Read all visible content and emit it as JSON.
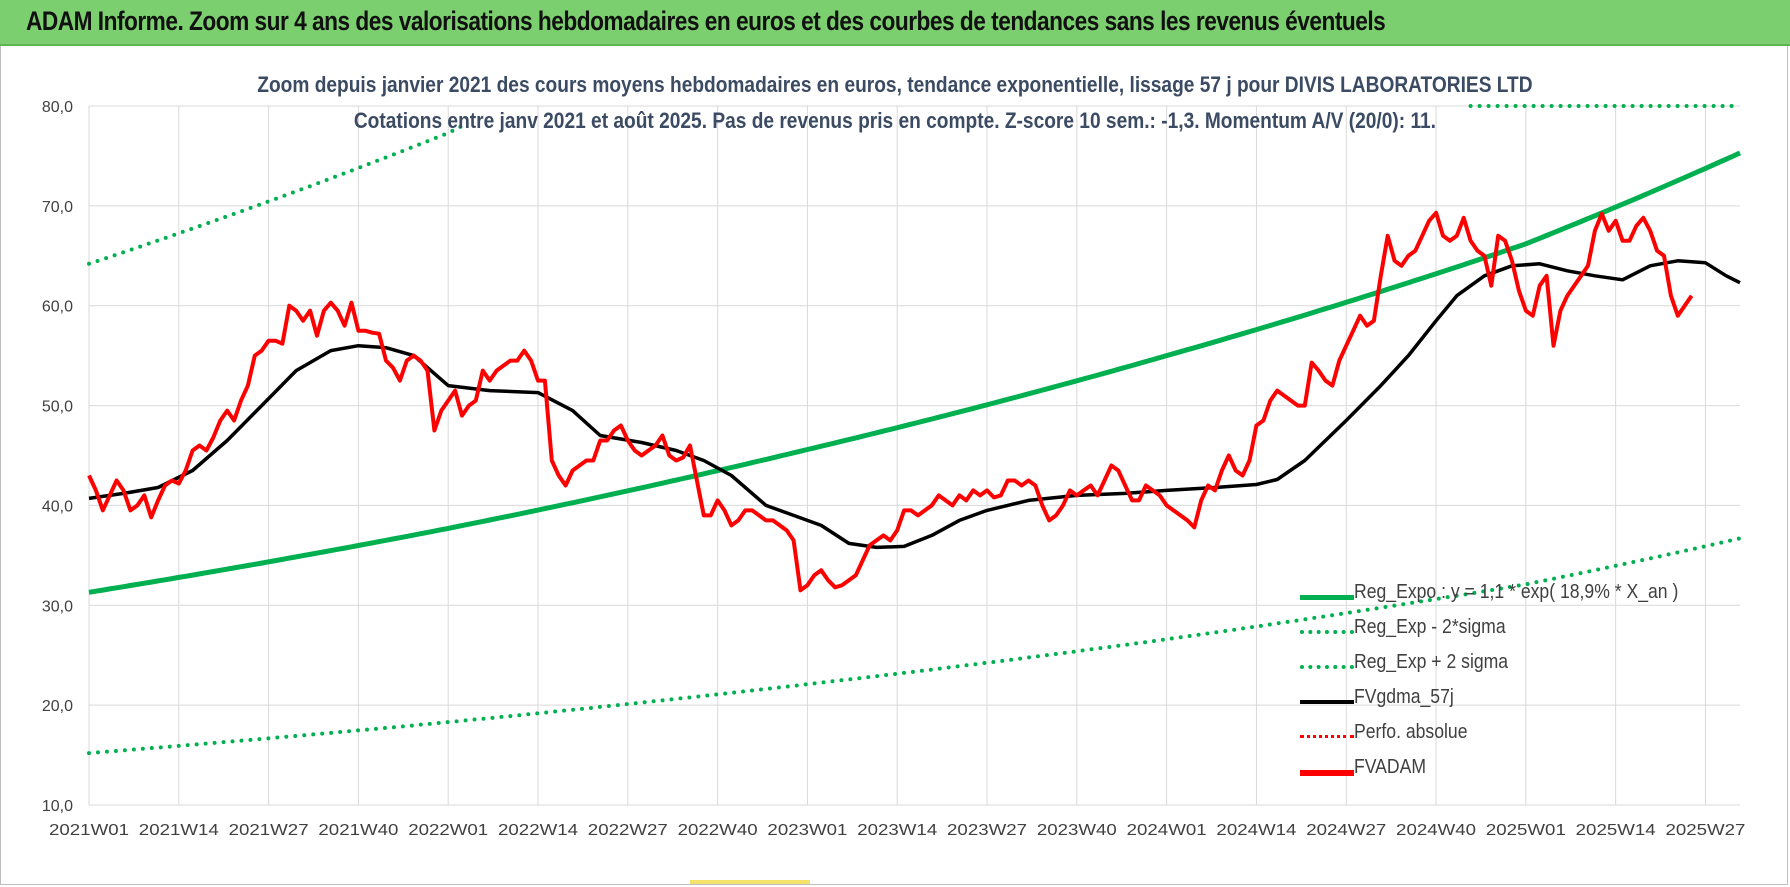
{
  "header": {
    "title": "ADAM Informe. Zoom sur 4 ans des valorisations hebdomadaires en euros et des courbes de tendances sans les revenus éventuels",
    "subtitle_line1": "Zoom depuis janvier 2021 des cours moyens hebdomadaires en euros, tendance exponentielle, lissage 57 j pour DIVIS LABORATORIES LTD",
    "subtitle_line2": "Cotations entre janv 2021 et août 2025. Pas de revenus pris en compte. Z-score 10 sem.: -1,3. Momentum A/V (20/0): 11."
  },
  "colors": {
    "banner": "#7ccf6e",
    "trend": "#00b050",
    "price": "#ff0000",
    "smooth": "#000000",
    "grid": "#d9d9d9",
    "tick_text": "#404040"
  },
  "legend": [
    {
      "label": "Reg_Expo : y = 1,1 * exp( 18,9% *  X_an )",
      "style": "solid",
      "color": "#00b050"
    },
    {
      "label": "Reg_Exp - 2*sigma",
      "style": "dotted",
      "color": "#00b050"
    },
    {
      "label": "Reg_Exp + 2 sigma",
      "style": "dotted",
      "color": "#00b050"
    },
    {
      "label": "FVgdma_57j",
      "style": "solid",
      "color": "#000000"
    },
    {
      "label": "Perfo. absolue",
      "style": "dotted",
      "color": "#ff0000"
    },
    {
      "label": "FVADAM",
      "style": "solid-thick",
      "color": "#ff0000"
    }
  ],
  "chart_data": {
    "type": "line",
    "x_type": "week_index",
    "xlim": [
      0,
      239
    ],
    "ylim": [
      10,
      80
    ],
    "yticks": [
      "10,0",
      "20,0",
      "30,0",
      "40,0",
      "50,0",
      "60,0",
      "70,0",
      "80,0"
    ],
    "xticks": [
      {
        "week": 0,
        "label": "2021W01"
      },
      {
        "week": 13,
        "label": "2021W14"
      },
      {
        "week": 26,
        "label": "2021W27"
      },
      {
        "week": 39,
        "label": "2021W40"
      },
      {
        "week": 52,
        "label": "2022W01"
      },
      {
        "week": 65,
        "label": "2022W14"
      },
      {
        "week": 78,
        "label": "2022W27"
      },
      {
        "week": 91,
        "label": "2022W40"
      },
      {
        "week": 104,
        "label": "2023W01"
      },
      {
        "week": 117,
        "label": "2023W14"
      },
      {
        "week": 130,
        "label": "2023W27"
      },
      {
        "week": 143,
        "label": "2023W40"
      },
      {
        "week": 156,
        "label": "2024W01"
      },
      {
        "week": 169,
        "label": "2024W14"
      },
      {
        "week": 182,
        "label": "2024W27"
      },
      {
        "week": 195,
        "label": "2024W40"
      },
      {
        "week": 208,
        "label": "2025W01"
      },
      {
        "week": 221,
        "label": "2025W14"
      },
      {
        "week": 234,
        "label": "2025W27"
      }
    ],
    "grid": true,
    "legend_position": "bottom-right",
    "trend": {
      "name": "Reg_Expo : y = 1,1 * exp( 18,9% *  X_an )",
      "points": [
        [
          0,
          31.3
        ],
        [
          52,
          37.7
        ],
        [
          104,
          45.6
        ],
        [
          156,
          55.0
        ],
        [
          208,
          66.2
        ],
        [
          239,
          75.3
        ]
      ]
    },
    "trend_minus": {
      "name": "Reg_Exp - 2*sigma",
      "points": [
        [
          0,
          15.2
        ],
        [
          52,
          18.3
        ],
        [
          104,
          22.1
        ],
        [
          156,
          26.6
        ],
        [
          208,
          32.1
        ],
        [
          239,
          36.7
        ]
      ]
    },
    "trend_plus": {
      "name": "Reg_Exp + 2 sigma",
      "points": [
        [
          0,
          64.2
        ],
        [
          52,
          77.3
        ],
        [
          54,
          78.0
        ]
      ],
      "points_b": [
        [
          200,
          80.0
        ],
        [
          239,
          80.0
        ]
      ]
    },
    "smooth": {
      "name": "FVgdma_57j",
      "points": [
        [
          0,
          40.7
        ],
        [
          5,
          41.2
        ],
        [
          10,
          41.8
        ],
        [
          15,
          43.5
        ],
        [
          20,
          46.5
        ],
        [
          25,
          50.0
        ],
        [
          30,
          53.5
        ],
        [
          35,
          55.5
        ],
        [
          39,
          56.0
        ],
        [
          43,
          55.8
        ],
        [
          47,
          55.0
        ],
        [
          52,
          52.0
        ],
        [
          58,
          51.5
        ],
        [
          65,
          51.3
        ],
        [
          70,
          49.5
        ],
        [
          74,
          47.0
        ],
        [
          80,
          46.3
        ],
        [
          85,
          45.5
        ],
        [
          89,
          44.5
        ],
        [
          93,
          43.0
        ],
        [
          98,
          40.0
        ],
        [
          102,
          39.0
        ],
        [
          106,
          38.0
        ],
        [
          110,
          36.2
        ],
        [
          114,
          35.8
        ],
        [
          118,
          35.9
        ],
        [
          122,
          37.0
        ],
        [
          126,
          38.5
        ],
        [
          130,
          39.5
        ],
        [
          136,
          40.5
        ],
        [
          143,
          41.0
        ],
        [
          150,
          41.2
        ],
        [
          156,
          41.5
        ],
        [
          163,
          41.8
        ],
        [
          169,
          42.1
        ],
        [
          172,
          42.6
        ],
        [
          176,
          44.5
        ],
        [
          182,
          48.5
        ],
        [
          187,
          52.0
        ],
        [
          191,
          55.0
        ],
        [
          195,
          58.5
        ],
        [
          198,
          61.0
        ],
        [
          202,
          63.0
        ],
        [
          206,
          64.0
        ],
        [
          210,
          64.2
        ],
        [
          214,
          63.5
        ],
        [
          218,
          63.0
        ],
        [
          222,
          62.6
        ],
        [
          226,
          64.0
        ],
        [
          230,
          64.5
        ],
        [
          234,
          64.3
        ],
        [
          237,
          63.0
        ],
        [
          239,
          62.3
        ]
      ]
    },
    "price": {
      "name": "FVADAM",
      "values": [
        43.0,
        41.5,
        39.5,
        41.0,
        42.5,
        41.5,
        39.5,
        40.0,
        41.0,
        38.8,
        40.5,
        42.0,
        42.5,
        42.2,
        43.5,
        45.5,
        46.0,
        45.5,
        46.8,
        48.5,
        49.5,
        48.5,
        50.5,
        52.0,
        55.0,
        55.5,
        56.5,
        56.5,
        56.2,
        60.0,
        59.5,
        58.5,
        59.5,
        57.0,
        59.5,
        60.3,
        59.5,
        58.0,
        60.3,
        57.5,
        57.5,
        57.3,
        57.2,
        54.5,
        53.8,
        52.5,
        54.5,
        55.0,
        54.5,
        53.5,
        47.5,
        49.5,
        50.5,
        51.5,
        49.0,
        50.0,
        50.5,
        53.5,
        52.5,
        53.5,
        54.0,
        54.5,
        54.5,
        55.5,
        54.5,
        52.5,
        52.5,
        44.5,
        43.0,
        42.0,
        43.5,
        44.0,
        44.5,
        44.5,
        46.5,
        46.5,
        47.5,
        48.0,
        46.5,
        45.5,
        45.0,
        45.5,
        46.0,
        47.0,
        45.0,
        44.5,
        44.8,
        46.0,
        42.5,
        39.0,
        39.0,
        40.5,
        39.5,
        38.0,
        38.5,
        39.5,
        39.5,
        39.0,
        38.5,
        38.5,
        38.0,
        37.5,
        36.5,
        31.5,
        32.0,
        33.0,
        33.5,
        32.5,
        31.8,
        32.0,
        32.5,
        33.0,
        34.5,
        36.0,
        36.5,
        37.0,
        36.5,
        37.5,
        39.5,
        39.5,
        39.0,
        39.5,
        40.0,
        41.0,
        40.5,
        40.0,
        41.0,
        40.5,
        41.5,
        41.0,
        41.5,
        40.8,
        41.0,
        42.5,
        42.5,
        42.0,
        42.5,
        42.0,
        40.0,
        38.5,
        39.0,
        40.0,
        41.5,
        41.0,
        41.5,
        42.0,
        41.0,
        42.5,
        44.0,
        43.5,
        42.0,
        40.5,
        40.5,
        42.0,
        41.5,
        41.0,
        40.0,
        39.5,
        39.0,
        38.5,
        37.8,
        40.5,
        42.0,
        41.5,
        43.5,
        45.0,
        43.5,
        43.0,
        44.5,
        48.0,
        48.5,
        50.5,
        51.5,
        51.0,
        50.5,
        50.0,
        50.0,
        54.3,
        53.5,
        52.5,
        52.0,
        54.5,
        56.0,
        57.5,
        59.0,
        58.0,
        58.5,
        63.0,
        67.0,
        64.5,
        64.0,
        65.0,
        65.5,
        67.0,
        68.5,
        69.3,
        67.0,
        66.5,
        67.0,
        68.8,
        66.5,
        65.5,
        65.0,
        62.0,
        67.0,
        66.5,
        64.5,
        61.5,
        59.5,
        59.0,
        62.0,
        63.0,
        56.0,
        59.5,
        61.0,
        62.0,
        63.0,
        64.0,
        67.5,
        69.2,
        67.5,
        68.5,
        66.5,
        66.5,
        68.0,
        68.8,
        67.5,
        65.5,
        65.0,
        61.0,
        59.0,
        60.0,
        61.0
      ]
    }
  }
}
